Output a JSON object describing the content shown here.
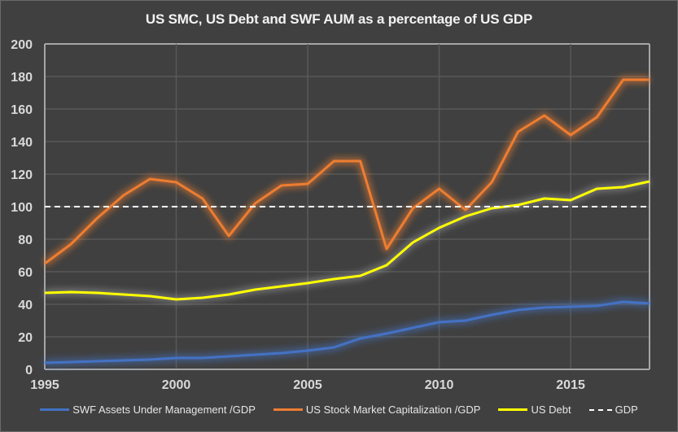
{
  "chart_data": {
    "type": "line",
    "title": "US SMC, US Debt and SWF AUM as a percentage of US GDP",
    "xlabel": "",
    "ylabel": "",
    "x": [
      1995,
      1996,
      1997,
      1998,
      1999,
      2000,
      2001,
      2002,
      2003,
      2004,
      2005,
      2006,
      2007,
      2008,
      2009,
      2010,
      2011,
      2012,
      2013,
      2014,
      2015,
      2016,
      2017,
      2018
    ],
    "xlim": [
      1995,
      2018
    ],
    "ylim": [
      0,
      200
    ],
    "yticks": [
      "0",
      "20",
      "40",
      "60",
      "80",
      "100",
      "120",
      "140",
      "160",
      "180",
      "200"
    ],
    "xticks": [
      "1995",
      "2000",
      "2005",
      "2010",
      "2015"
    ],
    "grid": true,
    "legend_position": "bottom",
    "series": [
      {
        "name": "SWF Assets Under Management /GDP",
        "color": "#4472c4",
        "values": [
          4,
          4.5,
          5,
          5.5,
          6,
          7,
          7,
          8,
          9,
          10,
          11.5,
          13.5,
          19,
          22,
          25.5,
          29,
          30,
          33.5,
          36.5,
          38,
          38.5,
          39,
          41.5,
          40.5
        ]
      },
      {
        "name": "US Stock Market Capitalization /GDP",
        "color": "#ed7d31",
        "values": [
          65,
          77,
          93,
          107,
          117,
          115,
          105,
          82,
          102,
          113,
          114,
          128,
          128,
          74,
          99,
          111,
          98,
          115,
          146,
          156,
          144,
          155,
          178,
          178
        ]
      },
      {
        "name": "US Debt",
        "color": "#ffff00",
        "values": [
          47,
          47.5,
          47,
          46,
          45,
          43,
          44,
          46,
          49,
          51,
          53,
          55.5,
          57.5,
          64,
          78,
          87,
          94,
          99,
          101,
          105,
          104,
          111,
          112,
          115.5
        ]
      },
      {
        "name": "GDP",
        "color": "#ffffff",
        "style": "dashed",
        "constant": 100
      }
    ]
  }
}
